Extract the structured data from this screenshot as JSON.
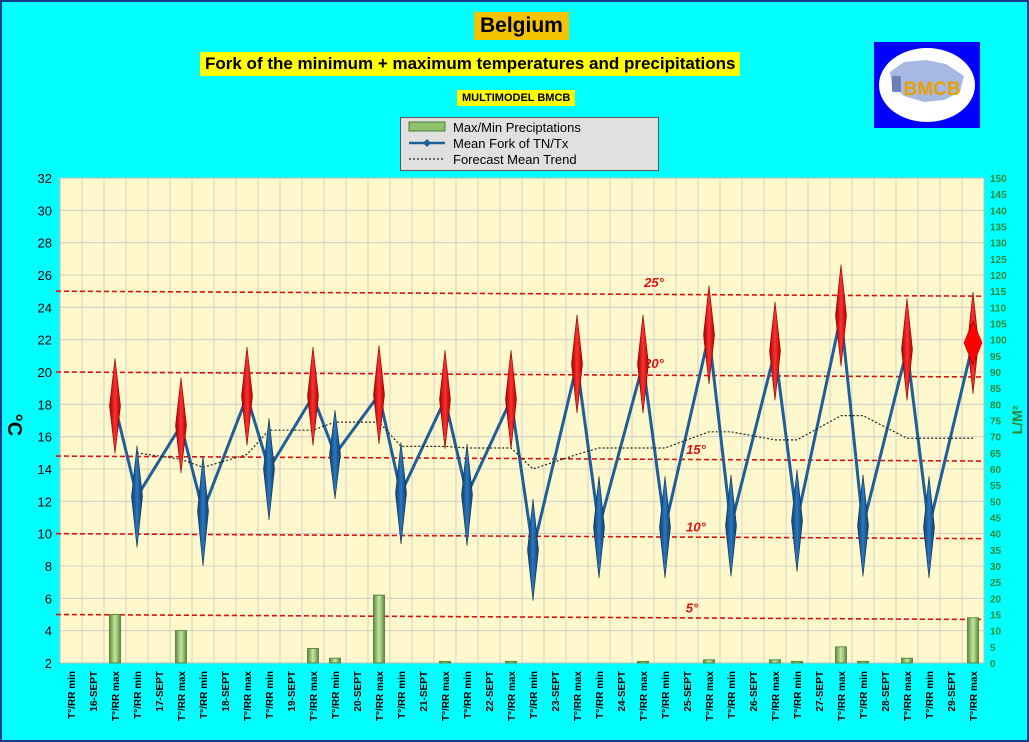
{
  "header": {
    "title": "Belgium",
    "subtitle": "Fork of the minimum + maximum temperatures and precipitations",
    "model": "MULTIMODEL BMCB",
    "logo_text": "BMCB"
  },
  "legend": {
    "items": [
      {
        "label": "Max/Min Preciptations",
        "kind": "bar"
      },
      {
        "label": "Mean Fork of TN/Tx",
        "kind": "line"
      },
      {
        "label": "Forecast Mean Trend",
        "kind": "dotted"
      }
    ]
  },
  "colors": {
    "background": "#00ffff",
    "plot_bg": "#fff8cc",
    "grid": "#c8c8c8",
    "line": "#1f5f99",
    "trend": "#222222",
    "threshold": "#dd1111",
    "max_marker": "#ff1a1a",
    "min_marker": "#1f5f99",
    "bar": "#8fc06a",
    "right_axis": "#2a8a3a"
  },
  "chart_data": {
    "type": "line",
    "ylabel": "°C",
    "y2label": "L/M²",
    "ylim": [
      2,
      32
    ],
    "y_ticks": [
      2,
      4,
      6,
      8,
      10,
      12,
      14,
      16,
      18,
      20,
      22,
      24,
      26,
      28,
      30,
      32
    ],
    "y2lim": [
      0,
      150
    ],
    "y2_ticks": [
      0,
      5,
      10,
      15,
      20,
      25,
      30,
      35,
      40,
      45,
      50,
      55,
      60,
      65,
      70,
      75,
      80,
      85,
      90,
      95,
      100,
      105,
      110,
      115,
      120,
      125,
      130,
      135,
      140,
      145,
      150
    ],
    "grid": true,
    "categories": [
      "T°/RR min",
      "16-SEPT",
      "T°/RR max",
      "T°/RR min",
      "17-SEPT",
      "T°/RR max",
      "T°/RR min",
      "18-SEPT",
      "T°/RR max",
      "T°/RR min",
      "19-SEPT",
      "T°/RR max",
      "T°/RR min",
      "20-SEPT",
      "T°/RR max",
      "T°/RR min",
      "21-SEPT",
      "T°/RR max",
      "T°/RR min",
      "22-SEPT",
      "T°/RR max",
      "T°/RR min",
      "23-SEPT",
      "T°/RR max",
      "T°/RR min",
      "24-SEPT",
      "T°/RR max",
      "T°/RR min",
      "25-SEPT",
      "T°/RR max",
      "T°/RR min",
      "26-SEPT",
      "T°/RR max",
      "T°/RR min",
      "27-SEPT",
      "T°/RR max",
      "T°/RR min",
      "28-SEPT",
      "T°/RR max",
      "T°/RR min",
      "29-SEPT",
      "T°/RR max"
    ],
    "series": [
      {
        "name": "Mean Fork of TN/Tx",
        "values": [
          null,
          null,
          17.9,
          12.3,
          null,
          16.7,
          11.4,
          null,
          18.5,
          14.0,
          null,
          18.5,
          14.9,
          null,
          18.6,
          12.5,
          null,
          18.3,
          12.4,
          null,
          18.3,
          9.0,
          null,
          20.5,
          10.4,
          null,
          20.5,
          10.4,
          null,
          22.3,
          10.5,
          null,
          21.3,
          10.8,
          null,
          23.5,
          10.5,
          null,
          21.4,
          10.4,
          null,
          21.8
        ]
      },
      {
        "name": "Forecast Mean Trend",
        "values": [
          null,
          null,
          null,
          15.0,
          null,
          14.6,
          14.1,
          null,
          14.9,
          16.4,
          null,
          16.4,
          16.9,
          null,
          16.9,
          15.4,
          null,
          15.4,
          15.3,
          null,
          15.3,
          14.0,
          null,
          14.9,
          15.3,
          null,
          15.3,
          15.3,
          null,
          16.3,
          16.3,
          null,
          15.8,
          15.8,
          null,
          17.3,
          17.3,
          null,
          15.9,
          15.9,
          null,
          15.9
        ]
      },
      {
        "name": "Max/Min Preciptations",
        "axis": "right",
        "values": [
          null,
          null,
          15.0,
          null,
          null,
          10.0,
          null,
          null,
          0,
          null,
          null,
          4.5,
          1.5,
          null,
          21.0,
          null,
          null,
          0.5,
          null,
          null,
          0.5,
          null,
          null,
          0,
          null,
          null,
          0.5,
          null,
          null,
          1.0,
          null,
          null,
          1.0,
          0.5,
          null,
          5.0,
          0.5,
          null,
          1.5,
          null,
          null,
          14.0
        ]
      }
    ],
    "max_spread": [
      null,
      null,
      5.9,
      6.3,
      null,
      5.9,
      6.8,
      null,
      6.1,
      6.3,
      null,
      6.1,
      5.5,
      null,
      6.1,
      6.3,
      null,
      6.1,
      6.3,
      null,
      6.1,
      6.3,
      null,
      6.1,
      6.3,
      null,
      6.1,
      6.3,
      null,
      6.1,
      6.3,
      null,
      6.1,
      6.3,
      null,
      6.3,
      6.3,
      null,
      6.3,
      6.3,
      null,
      6.3
    ],
    "thresholds": [
      {
        "label": "25°",
        "value": 25
      },
      {
        "label": "20°",
        "value": 20
      },
      {
        "label": "15°",
        "value": 14.8
      },
      {
        "label": "10°",
        "value": 10
      },
      {
        "label": "5°",
        "value": 5
      }
    ]
  }
}
